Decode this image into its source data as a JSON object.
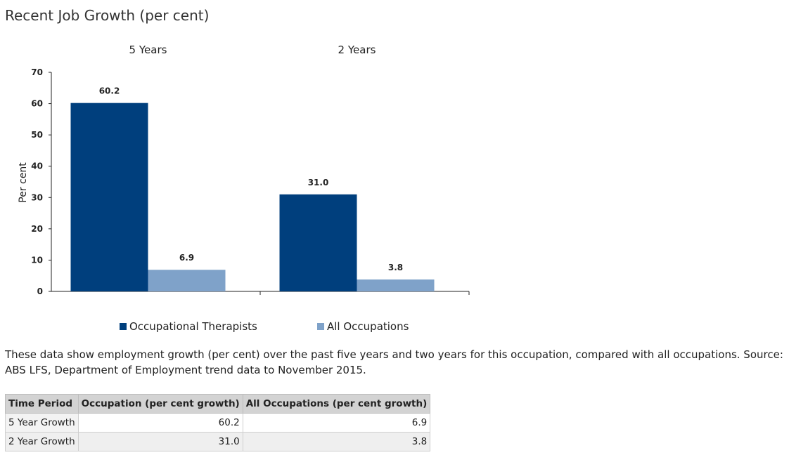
{
  "page": {
    "title": "Recent Job Growth (per cent)",
    "description": "These data show employment growth (per cent) over the past five years and two years for this occupation, compared with all occupations. Source: ABS LFS, Department of Employment trend data to November 2015."
  },
  "chart_data": {
    "type": "bar",
    "categories": [
      "5 Years",
      "2 Years"
    ],
    "series": [
      {
        "name": "Occupational Therapists",
        "values": [
          60.2,
          31.0
        ],
        "labels": [
          "60.2",
          "31.0"
        ],
        "color": "#003f7d"
      },
      {
        "name": "All Occupations",
        "values": [
          6.9,
          3.8
        ],
        "labels": [
          "6.9",
          "3.8"
        ],
        "color": "#7fa2c9"
      }
    ],
    "ylabel": "Per cent",
    "ylim": [
      0,
      70
    ],
    "yticks": [
      0,
      10,
      20,
      30,
      40,
      50,
      60,
      70
    ],
    "category_labels_position": "top",
    "legend_position": "bottom",
    "grid": false
  },
  "table": {
    "headers": [
      "Time Period",
      "Occupation (per cent growth)",
      "All Occupations (per cent growth)"
    ],
    "rows": [
      [
        "5 Year Growth",
        "60.2",
        "6.9"
      ],
      [
        "2 Year Growth",
        "31.0",
        "3.8"
      ]
    ]
  }
}
